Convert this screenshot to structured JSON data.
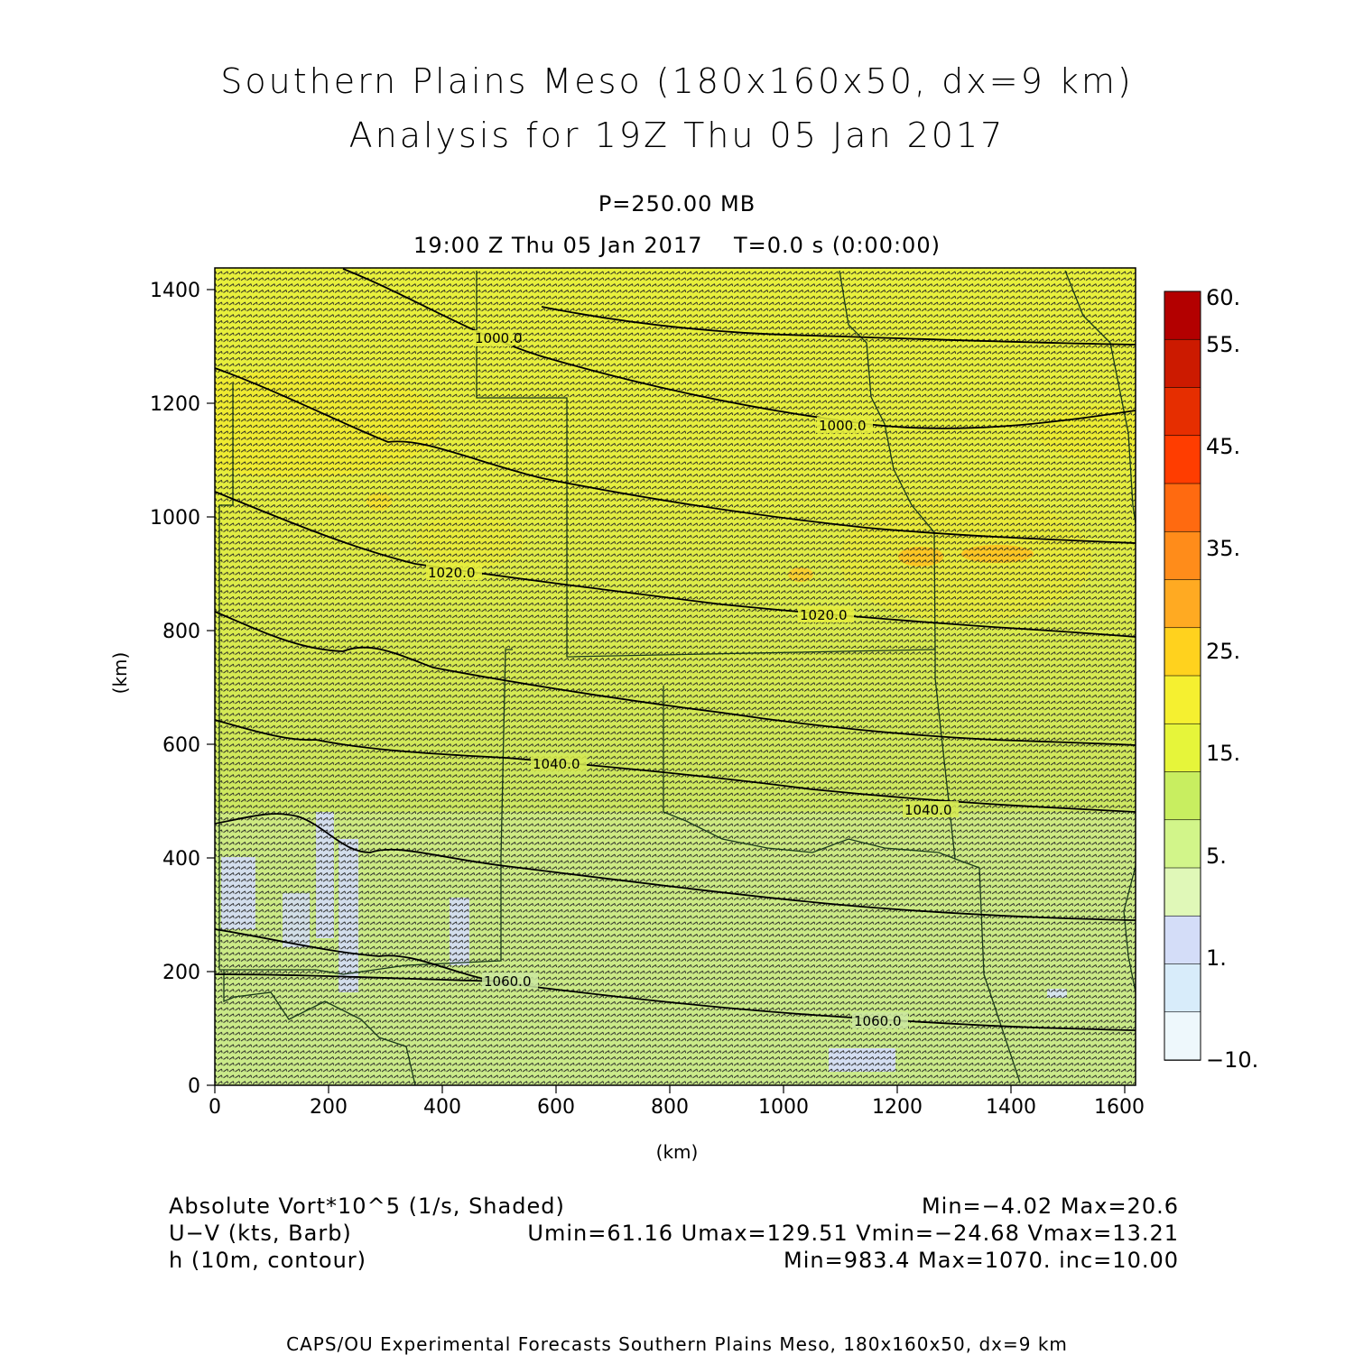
{
  "header": {
    "title_line1": "Southern Plains Meso (180x160x50, dx=9 km)",
    "title_line2": "Analysis for 19Z Thu 05 Jan 2017",
    "level": "P=250.00 MB",
    "time": "19:00 Z Thu 05 Jan 2017    T=0.0 s (0:00:00)"
  },
  "axes": {
    "x_label": "(km)",
    "y_label": "(km)",
    "x_ticks": [
      "0",
      "200",
      "400",
      "600",
      "800",
      "1000",
      "1200",
      "1400",
      "1600"
    ],
    "y_ticks": [
      "0",
      "200",
      "400",
      "600",
      "800",
      "1000",
      "1200",
      "1400"
    ]
  },
  "colorbar": {
    "labels": [
      "60.",
      "55.",
      "45.",
      "35.",
      "25.",
      "15.",
      "5.",
      "1.",
      "−10."
    ],
    "colors": [
      "#b30000",
      "#cc1a00",
      "#e62e00",
      "#ff3d00",
      "#ff6a10",
      "#ff8c1a",
      "#ffaa22",
      "#ffd21e",
      "#f5f030",
      "#e6f53a",
      "#c8ee60",
      "#d2f58a",
      "#e0f8b8",
      "#d4ddf8",
      "#d8ecfa",
      "#eef8fc"
    ]
  },
  "contour_labels": [
    "1000.0",
    "1000.0",
    "1020.0",
    "1020.0",
    "1040.0",
    "1040.0",
    "1060.0",
    "1060.0"
  ],
  "info": {
    "left1": "Absolute Vort*10^5 (1/s, Shaded)",
    "right1": "Min=−4.02 Max=20.6",
    "left2": "U−V (kts, Barb)",
    "right2": "Umin=61.16 Umax=129.51 Vmin=−24.68 Vmax=13.21",
    "left3": "h (10m, contour)",
    "right3": "Min=983.4 Max=1070. inc=10.00"
  },
  "footer": "CAPS/OU Experimental Forecasts  Southern Plains Meso, 180x160x50, dx=9 km"
}
